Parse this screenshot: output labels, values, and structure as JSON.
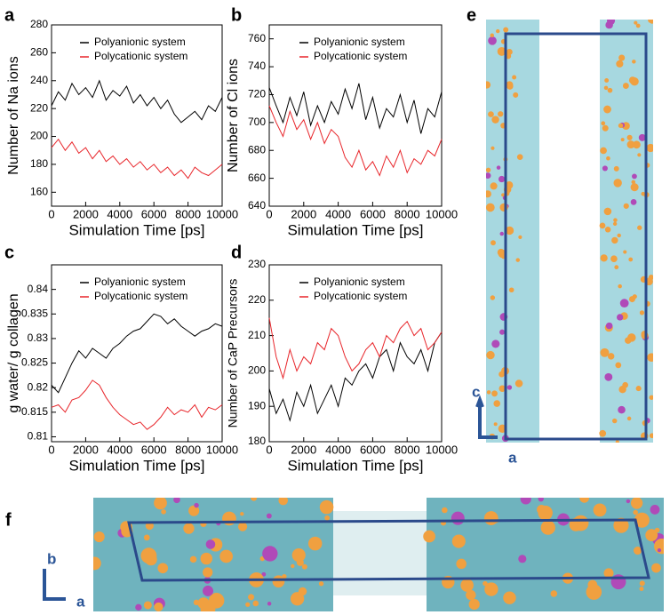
{
  "chart_data": [
    {
      "type": "line",
      "label": "a",
      "xlabel": "Simulation Time [ps]",
      "ylabel": "Number of Na ions",
      "xlim": [
        0,
        10000
      ],
      "xticks": [
        0,
        2000,
        4000,
        6000,
        8000,
        10000
      ],
      "ylim": [
        150,
        280
      ],
      "yticks": [
        160,
        180,
        200,
        220,
        240,
        260,
        280
      ],
      "legend": "upper right",
      "x": [
        0,
        400,
        800,
        1200,
        1600,
        2000,
        2400,
        2800,
        3200,
        3600,
        4000,
        4400,
        4800,
        5200,
        5600,
        6000,
        6400,
        6800,
        7200,
        7600,
        8000,
        8400,
        8800,
        9200,
        9600,
        10000
      ],
      "series": [
        {
          "name": "Polyanionic system",
          "color": "#000000",
          "values": [
            222,
            232,
            226,
            238,
            230,
            235,
            228,
            240,
            226,
            233,
            229,
            236,
            224,
            230,
            222,
            228,
            220,
            226,
            216,
            210,
            214,
            218,
            212,
            222,
            218,
            228
          ]
        },
        {
          "name": "Polycationic system",
          "color": "#e8262b",
          "values": [
            192,
            198,
            190,
            196,
            188,
            192,
            184,
            190,
            182,
            186,
            180,
            184,
            178,
            182,
            176,
            180,
            174,
            178,
            172,
            176,
            170,
            178,
            174,
            172,
            176,
            180
          ]
        }
      ]
    },
    {
      "type": "line",
      "label": "b",
      "xlabel": "Simulation Time [ps]",
      "ylabel": "Number of Cl ions",
      "xlim": [
        0,
        10000
      ],
      "xticks": [
        0,
        2000,
        4000,
        6000,
        8000,
        10000
      ],
      "ylim": [
        640,
        770
      ],
      "yticks": [
        640,
        660,
        680,
        700,
        720,
        740,
        760
      ],
      "legend": "upper right",
      "x": [
        0,
        400,
        800,
        1200,
        1600,
        2000,
        2400,
        2800,
        3200,
        3600,
        4000,
        4400,
        4800,
        5200,
        5600,
        6000,
        6400,
        6800,
        7200,
        7600,
        8000,
        8400,
        8800,
        9200,
        9600,
        10000
      ],
      "series": [
        {
          "name": "Polyanionic system",
          "color": "#000000",
          "values": [
            725,
            712,
            700,
            718,
            705,
            722,
            698,
            712,
            700,
            715,
            706,
            724,
            710,
            728,
            702,
            718,
            696,
            710,
            704,
            720,
            700,
            716,
            692,
            710,
            704,
            722
          ]
        },
        {
          "name": "Polycationic system",
          "color": "#e8262b",
          "values": [
            712,
            700,
            690,
            708,
            695,
            702,
            688,
            700,
            685,
            695,
            690,
            675,
            668,
            680,
            666,
            672,
            662,
            676,
            668,
            680,
            664,
            674,
            670,
            680,
            676,
            688
          ]
        }
      ]
    },
    {
      "type": "line",
      "label": "c",
      "xlabel": "Simulation Time [ps]",
      "ylabel": "g water/ g collagen",
      "xlim": [
        0,
        10000
      ],
      "xticks": [
        0,
        2000,
        4000,
        6000,
        8000,
        10000
      ],
      "ylim": [
        0.809,
        0.845
      ],
      "yticks": [
        0.81,
        0.815,
        0.82,
        0.825,
        0.83,
        0.835,
        0.84
      ],
      "legend": "upper right",
      "x": [
        0,
        400,
        800,
        1200,
        1600,
        2000,
        2400,
        2800,
        3200,
        3600,
        4000,
        4400,
        4800,
        5200,
        5600,
        6000,
        6400,
        6800,
        7200,
        7600,
        8000,
        8400,
        8800,
        9200,
        9600,
        10000
      ],
      "series": [
        {
          "name": "Polyanionic system",
          "color": "#000000",
          "values": [
            0.8205,
            0.819,
            0.822,
            0.825,
            0.8275,
            0.826,
            0.828,
            0.827,
            0.826,
            0.828,
            0.829,
            0.8305,
            0.8315,
            0.832,
            0.8335,
            0.835,
            0.8345,
            0.833,
            0.834,
            0.8325,
            0.8315,
            0.8305,
            0.8315,
            0.832,
            0.833,
            0.8325
          ]
        },
        {
          "name": "Polycationic system",
          "color": "#e8262b",
          "values": [
            0.816,
            0.8165,
            0.815,
            0.8175,
            0.818,
            0.8195,
            0.8215,
            0.8205,
            0.818,
            0.816,
            0.8145,
            0.8135,
            0.8125,
            0.813,
            0.8115,
            0.8125,
            0.814,
            0.816,
            0.8145,
            0.8155,
            0.815,
            0.8165,
            0.814,
            0.816,
            0.8155,
            0.8165
          ]
        }
      ]
    },
    {
      "type": "line",
      "label": "d",
      "xlabel": "Simulation Time [ps]",
      "ylabel": "Number of CaP Precursors",
      "xlim": [
        0,
        10000
      ],
      "xticks": [
        0,
        2000,
        4000,
        6000,
        8000,
        10000
      ],
      "ylim": [
        180,
        230
      ],
      "yticks": [
        180,
        190,
        200,
        210,
        220,
        230
      ],
      "legend": "upper right",
      "x": [
        0,
        400,
        800,
        1200,
        1600,
        2000,
        2400,
        2800,
        3200,
        3600,
        4000,
        4400,
        4800,
        5200,
        5600,
        6000,
        6400,
        6800,
        7200,
        7600,
        8000,
        8400,
        8800,
        9200,
        9600,
        10000
      ],
      "series": [
        {
          "name": "Polyanionic system",
          "color": "#000000",
          "values": [
            195,
            188,
            192,
            186,
            194,
            190,
            196,
            188,
            192,
            196,
            190,
            198,
            196,
            200,
            202,
            198,
            204,
            206,
            200,
            208,
            204,
            202,
            206,
            200,
            208,
            211
          ]
        },
        {
          "name": "Polycationic system",
          "color": "#e8262b",
          "values": [
            215,
            204,
            198,
            206,
            200,
            204,
            202,
            208,
            206,
            212,
            210,
            204,
            200,
            202,
            206,
            208,
            204,
            210,
            208,
            212,
            214,
            210,
            212,
            206,
            208,
            211
          ]
        }
      ]
    }
  ],
  "panels": [
    {
      "label": "e",
      "axis_labels": [
        "c",
        "a"
      ]
    },
    {
      "label": "f",
      "axis_labels": [
        "b",
        "a"
      ]
    }
  ]
}
